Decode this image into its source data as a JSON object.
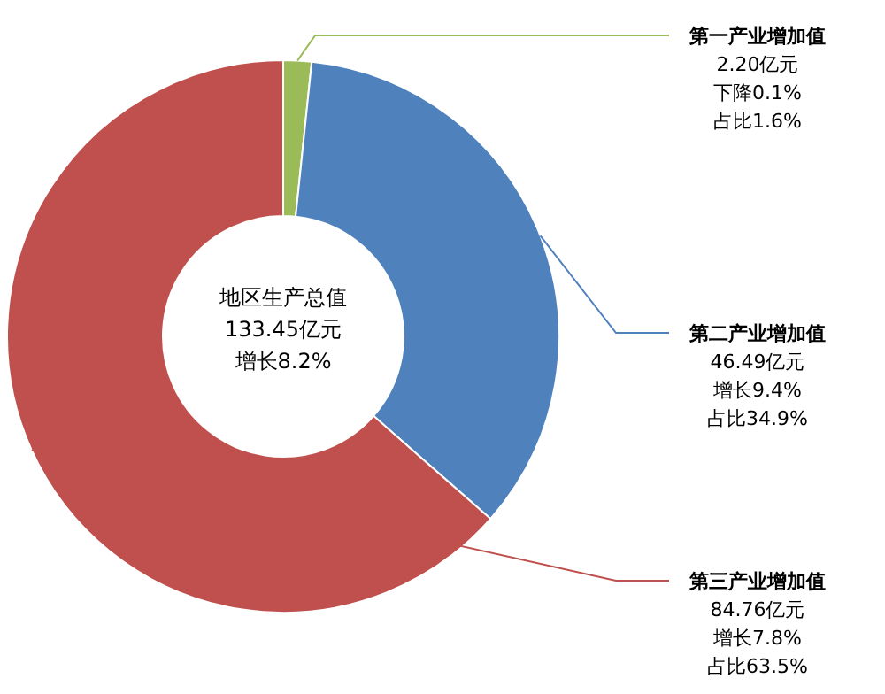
{
  "chart_data": {
    "type": "donut",
    "categories": [
      "第一产业增加值",
      "第二产业增加值",
      "第三产业增加值"
    ],
    "values": [
      2.2,
      46.49,
      84.76
    ],
    "colors": [
      "#9bbb59",
      "#4f81bd",
      "#c0504d"
    ],
    "value_labels": [
      "2.20亿元",
      "46.49亿元",
      "84.76亿元"
    ],
    "annotations": [
      "下降0.1%",
      "占比1.6%",
      "增长9.4%",
      "占比34.9%",
      "增长7.8%",
      "占比63.5%",
      "地区生产总值",
      "133.45亿元",
      "增长8.2%"
    ]
  }
}
